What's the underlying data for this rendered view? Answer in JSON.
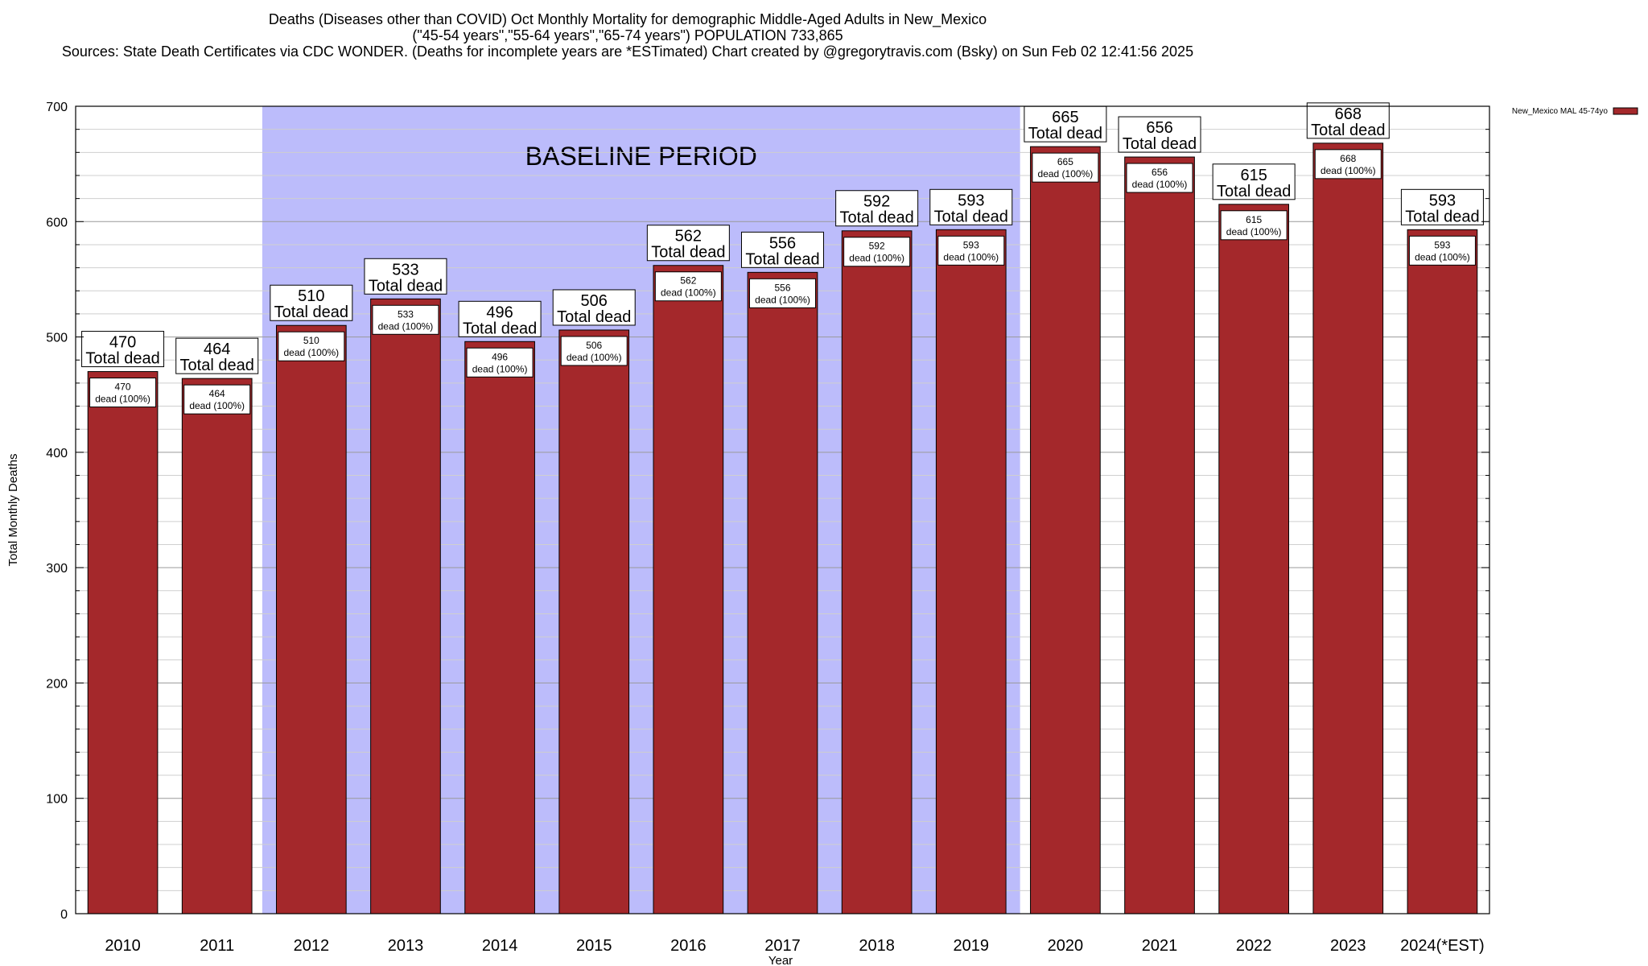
{
  "title_lines": [
    "Deaths (Diseases other than COVID) Oct Monthly Mortality for demographic Middle-Aged Adults in New_Mexico",
    "(\"45-54 years\",\"55-64 years\",\"65-74 years\") POPULATION 733,865",
    "Sources: State Death Certificates via CDC WONDER. (Deaths for incomplete years are *ESTimated)                Chart created by @gregorytravis.com (Bsky) on Sun Feb 02 12:41:56 2025"
  ],
  "chart_data": {
    "type": "bar",
    "categories": [
      "2010",
      "2011",
      "2012",
      "2013",
      "2014",
      "2015",
      "2016",
      "2017",
      "2018",
      "2019",
      "2020",
      "2021",
      "2022",
      "2023",
      "2024(*EST)"
    ],
    "series": [
      {
        "name": "New_Mexico MAL 45-74yo",
        "values": [
          470,
          464,
          510,
          533,
          496,
          506,
          562,
          556,
          592,
          593,
          665,
          656,
          615,
          668,
          593
        ]
      }
    ],
    "xlabel": "Year",
    "ylabel": "Total Monthly Deaths",
    "ylim": [
      0,
      700
    ],
    "yticks": [
      0,
      100,
      200,
      300,
      400,
      500,
      600,
      700
    ],
    "grid": true,
    "legend_position": "top-right",
    "bar_color": "#a4282b",
    "baseline_color": "#bcbcfb",
    "baseline_label": "BASELINE PERIOD",
    "baseline_range": [
      "2012",
      "2019"
    ],
    "total_label_suffix": "Total dead",
    "inner_label_suffix": "dead (100%)"
  }
}
